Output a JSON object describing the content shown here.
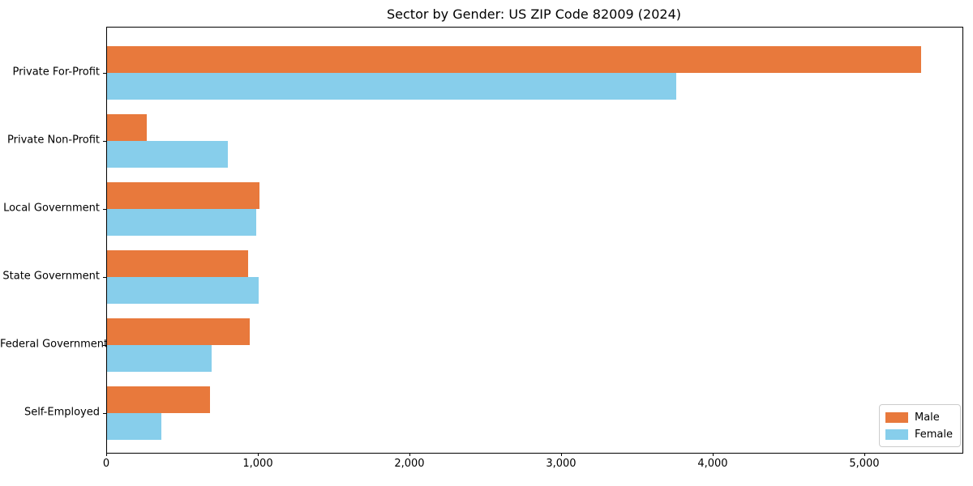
{
  "title": "Sector by Gender: US ZIP Code 82009 (2024)",
  "colors": {
    "male": "#E8793C",
    "female": "#87CEEB",
    "spine": "#000000",
    "legend_border": "#cccccc",
    "background": "#ffffff"
  },
  "legend": {
    "position": "lower right",
    "items": [
      {
        "label": "Male",
        "color": "#E8793C"
      },
      {
        "label": "Female",
        "color": "#87CEEB"
      }
    ]
  },
  "chart_data": {
    "type": "bar",
    "orientation": "horizontal",
    "title": "Sector by Gender: US ZIP Code 82009 (2024)",
    "categories": [
      "Private For-Profit",
      "Private Non-Profit",
      "Local Government",
      "State Government",
      "Federal Government",
      "Self-Employed"
    ],
    "series": [
      {
        "name": "Male",
        "color": "#E8793C",
        "values": [
          5370,
          260,
          1005,
          930,
          940,
          680
        ]
      },
      {
        "name": "Female",
        "color": "#87CEEB",
        "values": [
          3755,
          795,
          985,
          1000,
          690,
          360
        ]
      }
    ],
    "xlabel": "",
    "ylabel": "",
    "xlim": [
      0,
      5642
    ],
    "xticks": [
      0,
      1000,
      2000,
      3000,
      4000,
      5000
    ],
    "xtick_labels": [
      "0",
      "1,000",
      "2,000",
      "3,000",
      "4,000",
      "5,000"
    ],
    "grid": false,
    "legend_position": "lower right"
  }
}
